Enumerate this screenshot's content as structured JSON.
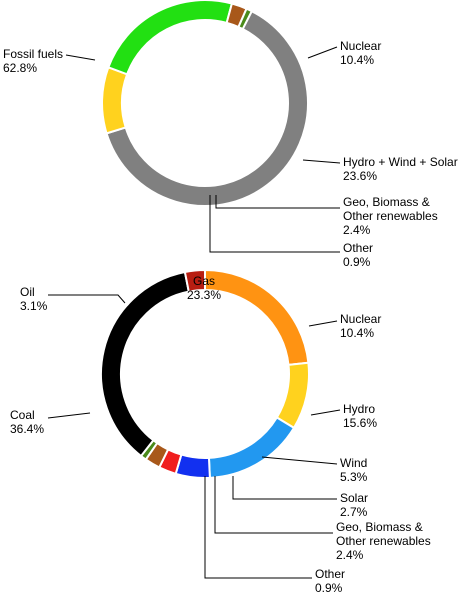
{
  "chart_data": [
    {
      "type": "pie",
      "style": "donut",
      "slices": [
        {
          "label": "Fossil fuels",
          "value_text": "62.8%",
          "value": 62.8,
          "color": "#808080"
        },
        {
          "label": "Nuclear",
          "value_text": "10.4%",
          "value": 10.4,
          "color": "#FFD21E"
        },
        {
          "label": "Hydro + Wind + Solar",
          "value_text": "23.6%",
          "value": 23.6,
          "color": "#22E012"
        },
        {
          "label": "Geo, Biomass & Other renewables",
          "value_text": "2.4%",
          "value": 2.4,
          "color": "#A8581A"
        },
        {
          "label": "Other",
          "value_text": "0.9%",
          "value": 0.9,
          "color": "#4A8A1A"
        }
      ]
    },
    {
      "type": "pie",
      "style": "donut",
      "slices": [
        {
          "label": "Gas",
          "value_text": "23.3%",
          "value": 23.3,
          "color": "#FF9312"
        },
        {
          "label": "Nuclear",
          "value_text": "10.4%",
          "value": 10.4,
          "color": "#FFD21E"
        },
        {
          "label": "Hydro",
          "value_text": "15.6%",
          "value": 15.6,
          "color": "#2298F0"
        },
        {
          "label": "Wind",
          "value_text": "5.3%",
          "value": 5.3,
          "color": "#1230F0"
        },
        {
          "label": "Solar",
          "value_text": "2.7%",
          "value": 2.7,
          "color": "#F01E1E"
        },
        {
          "label": "Geo, Biomass & Other renewables",
          "value_text": "2.4%",
          "value": 2.4,
          "color": "#A8581A"
        },
        {
          "label": "Other",
          "value_text": "0.9%",
          "value": 0.9,
          "color": "#4A8A1A"
        },
        {
          "label": "Coal",
          "value_text": "36.4%",
          "value": 36.4,
          "color": "#000000"
        },
        {
          "label": "Oil",
          "value_text": "3.1%",
          "value": 3.1,
          "color": "#B81E12"
        }
      ]
    }
  ]
}
